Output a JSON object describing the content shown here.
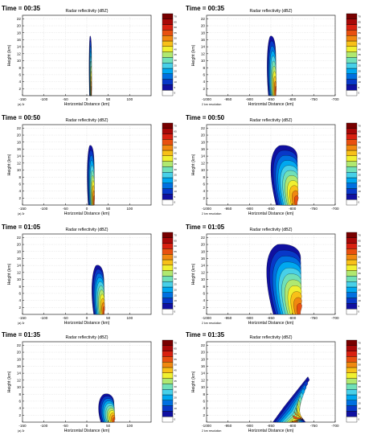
{
  "figure": {
    "colorbar_colors": [
      "#ffffff",
      "#1010a0",
      "#0838c8",
      "#0070e0",
      "#00a8f0",
      "#48d0e8",
      "#70e0b8",
      "#b0e870",
      "#f0f030",
      "#f8c018",
      "#f08810",
      "#e85010",
      "#d82010",
      "#a80808",
      "#780000"
    ],
    "colorbar_ticks": [
      "0",
      "5",
      "10",
      "15",
      "20",
      "25",
      "30",
      "35",
      "40",
      "45",
      "50",
      "55",
      "60",
      "65",
      "70"
    ]
  },
  "chart_data": [
    {
      "type": "contour",
      "panel": "a",
      "time_label": "Time = 00:35",
      "title": "Radar reflectivity (dBZ)",
      "xlabel": "Horizontal Distance (km)",
      "ylabel": "Height (km)",
      "xlim": [
        -150,
        150
      ],
      "ylim": [
        0,
        23
      ],
      "xticks": [
        -150,
        -100,
        -50,
        0,
        50,
        100
      ],
      "yticks": [
        2,
        4,
        6,
        8,
        10,
        12,
        14,
        16,
        18,
        20,
        22
      ],
      "corner_note": "(a) 3r",
      "storm": {
        "x": [
          5,
          12
        ],
        "top_km": 17,
        "shape": "narrow"
      }
    },
    {
      "type": "contour",
      "panel": "b",
      "time_label": "Time = 00:35",
      "title": "Radar reflectivity (dBZ)",
      "xlabel": "Horizontal Distance (km)",
      "ylabel": "Height (km)",
      "xlim": [
        -1000,
        -700
      ],
      "ylim": [
        0,
        23
      ],
      "xticks": [
        -1000,
        -950,
        -900,
        -850,
        -800,
        -750,
        -700
      ],
      "yticks": [
        2,
        4,
        6,
        8,
        10,
        12,
        14,
        16,
        18,
        20,
        22
      ],
      "corner_note": "2 km resolution",
      "storm": {
        "x": [
          -860,
          -835
        ],
        "top_km": 17,
        "shape": "narrow"
      }
    },
    {
      "type": "contour",
      "panel": "c",
      "time_label": "Time = 00:50",
      "title": "Radar reflectivity (dBZ)",
      "xlabel": "Horizontal Distance (km)",
      "ylabel": "Height (km)",
      "xlim": [
        -150,
        150
      ],
      "ylim": [
        0,
        23
      ],
      "xticks": [
        -150,
        -100,
        -50,
        0,
        50,
        100
      ],
      "yticks": [
        2,
        4,
        6,
        8,
        10,
        12,
        14,
        16,
        18,
        20,
        22
      ],
      "corner_note": "(a) 3r",
      "storm": {
        "x": [
          0,
          20
        ],
        "top_km": 17,
        "shape": "medium"
      }
    },
    {
      "type": "contour",
      "panel": "d",
      "time_label": "Time = 00:50",
      "title": "Radar reflectivity (dBZ)",
      "xlabel": "Horizontal Distance (km)",
      "ylabel": "Height (km)",
      "xlim": [
        -1000,
        -700
      ],
      "ylim": [
        0,
        23
      ],
      "xticks": [
        -1000,
        -950,
        -900,
        -850,
        -800,
        -750,
        -700
      ],
      "yticks": [
        2,
        4,
        6,
        8,
        10,
        12,
        14,
        16,
        18,
        20,
        22
      ],
      "corner_note": "2 km resolution",
      "storm": {
        "x": [
          -850,
          -780
        ],
        "top_km": 17,
        "shape": "wide"
      }
    },
    {
      "type": "contour",
      "panel": "e",
      "time_label": "Time = 01:05",
      "title": "Radar reflectivity (dBZ)",
      "xlabel": "Horizontal Distance (km)",
      "ylabel": "Height (km)",
      "xlim": [
        -150,
        150
      ],
      "ylim": [
        0,
        23
      ],
      "xticks": [
        -150,
        -100,
        -50,
        0,
        50,
        100
      ],
      "yticks": [
        2,
        4,
        6,
        8,
        10,
        12,
        14,
        16,
        18,
        20,
        22
      ],
      "corner_note": "(a) 3r",
      "storm": {
        "x": [
          10,
          45
        ],
        "top_km": 14,
        "shape": "medium"
      }
    },
    {
      "type": "contour",
      "panel": "f",
      "time_label": "Time = 01:05",
      "title": "Radar reflectivity (dBZ)",
      "xlabel": "Horizontal Distance (km)",
      "ylabel": "Height (km)",
      "xlim": [
        -1000,
        -700
      ],
      "ylim": [
        0,
        23
      ],
      "xticks": [
        -1000,
        -950,
        -900,
        -850,
        -800,
        -750,
        -700
      ],
      "yticks": [
        2,
        4,
        6,
        8,
        10,
        12,
        14,
        16,
        18,
        20,
        22
      ],
      "corner_note": "2 km resolution",
      "storm": {
        "x": [
          -860,
          -770
        ],
        "top_km": 20,
        "shape": "wide"
      }
    },
    {
      "type": "contour",
      "panel": "g",
      "time_label": "Time = 01:35",
      "title": "Radar reflectivity (dBZ)",
      "xlabel": "Horizontal Distance (km)",
      "ylabel": "Height (km)",
      "xlim": [
        -150,
        150
      ],
      "ylim": [
        0,
        23
      ],
      "xticks": [
        -150,
        -100,
        -50,
        0,
        50,
        100
      ],
      "yticks": [
        2,
        4,
        6,
        8,
        10,
        12,
        14,
        16,
        18,
        20,
        22
      ],
      "corner_note": "(a) 3r",
      "storm": {
        "x": [
          25,
          70
        ],
        "top_km": 8,
        "shape": "low"
      }
    },
    {
      "type": "contour",
      "panel": "h",
      "time_label": "Time = 01:35",
      "title": "Radar reflectivity (dBZ)",
      "xlabel": "Horizontal Distance (km)",
      "ylabel": "Height (km)",
      "xlim": [
        -1000,
        -700
      ],
      "ylim": [
        0,
        23
      ],
      "xticks": [
        -1000,
        -950,
        -900,
        -850,
        -800,
        -750,
        -700
      ],
      "yticks": [
        2,
        4,
        6,
        8,
        10,
        12,
        14,
        16,
        18,
        20,
        22
      ],
      "corner_note": "2 km resolution",
      "storm": {
        "x": [
          -850,
          -760
        ],
        "top_km": 13,
        "shape": "slant"
      }
    }
  ]
}
